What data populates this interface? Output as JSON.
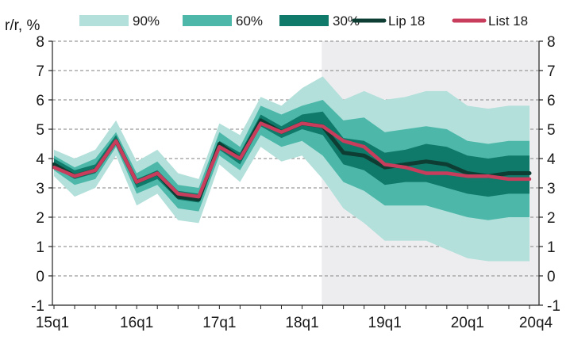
{
  "chart_data": {
    "type": "area",
    "title": "",
    "ylabel": "r/r, %",
    "xlabel": "",
    "ylim": [
      -1,
      8
    ],
    "yticks": [
      -1,
      0,
      1,
      2,
      3,
      4,
      5,
      6,
      7,
      8
    ],
    "x_tick_labels": [
      {
        "i": 0,
        "label": "15q1"
      },
      {
        "i": 4,
        "label": "16q1"
      },
      {
        "i": 8,
        "label": "17q1"
      },
      {
        "i": 12,
        "label": "18q1"
      },
      {
        "i": 16,
        "label": "19q1"
      },
      {
        "i": 20,
        "label": "20q1"
      },
      {
        "i": 23,
        "label": "20q4"
      }
    ],
    "forecast_start_index": 13,
    "grid": "horizontal dashed",
    "legend_position": "top",
    "legend": [
      {
        "key": "band90",
        "label": "90%"
      },
      {
        "key": "band60",
        "label": "60%"
      },
      {
        "key": "band30",
        "label": "30%"
      },
      {
        "key": "lip",
        "label": "Lip 18"
      },
      {
        "key": "list",
        "label": "List 18"
      }
    ],
    "colors": {
      "band90": "#b3e0da",
      "band60": "#4db8aa",
      "band30": "#0f7a6a",
      "lip": "#0d3d33",
      "list": "#c83c5c",
      "forecast_bg": "#ededf0",
      "grid": "#9a9a9a"
    },
    "quarters": [
      "15q1",
      "15q2",
      "15q3",
      "15q4",
      "16q1",
      "16q2",
      "16q3",
      "16q4",
      "17q1",
      "17q2",
      "17q3",
      "17q4",
      "18q1",
      "18q2",
      "18q3",
      "18q4",
      "19q1",
      "19q2",
      "19q3",
      "19q4",
      "20q1",
      "20q2",
      "20q3",
      "20q4"
    ],
    "bands": {
      "p90": {
        "low": [
          3.4,
          2.7,
          3.0,
          4.1,
          2.4,
          2.8,
          1.9,
          1.8,
          3.8,
          3.2,
          4.4,
          3.9,
          4.1,
          3.3,
          2.3,
          1.8,
          1.2,
          1.2,
          1.2,
          0.9,
          0.6,
          0.5,
          0.5,
          0.5
        ],
        "high": [
          4.3,
          4.0,
          4.3,
          5.3,
          3.9,
          4.3,
          3.5,
          3.3,
          5.2,
          4.8,
          6.1,
          5.8,
          6.4,
          6.8,
          6.0,
          6.3,
          6.0,
          6.1,
          6.3,
          6.3,
          5.8,
          5.7,
          5.8,
          5.8
        ]
      },
      "p60": {
        "low": [
          3.6,
          3.1,
          3.3,
          4.4,
          2.8,
          3.1,
          2.3,
          2.2,
          4.1,
          3.6,
          4.8,
          4.4,
          4.6,
          4.1,
          3.2,
          2.9,
          2.4,
          2.4,
          2.4,
          2.2,
          2.0,
          1.9,
          2.0,
          2.0
        ],
        "high": [
          4.1,
          3.7,
          4.0,
          4.9,
          3.5,
          3.9,
          3.1,
          3.0,
          4.9,
          4.4,
          5.8,
          5.5,
          5.8,
          6.0,
          5.3,
          5.4,
          4.9,
          5.0,
          5.1,
          5.0,
          4.6,
          4.5,
          4.6,
          4.6
        ]
      },
      "p30": {
        "low": [
          3.7,
          3.3,
          3.5,
          4.6,
          3.0,
          3.3,
          2.6,
          2.5,
          4.3,
          3.8,
          5.1,
          4.7,
          5.0,
          4.8,
          3.8,
          3.6,
          3.1,
          3.2,
          3.2,
          3.0,
          2.8,
          2.7,
          2.8,
          2.8
        ],
        "high": [
          4.0,
          3.6,
          3.8,
          4.8,
          3.3,
          3.6,
          2.9,
          2.8,
          4.6,
          4.2,
          5.5,
          5.1,
          5.5,
          5.6,
          4.7,
          4.6,
          4.2,
          4.3,
          4.5,
          4.4,
          4.1,
          4.0,
          4.1,
          4.1
        ]
      }
    },
    "series": [
      {
        "key": "lip",
        "name": "Lip 18",
        "values": [
          3.8,
          3.4,
          3.6,
          4.6,
          3.2,
          3.5,
          2.7,
          2.6,
          4.5,
          4.0,
          5.3,
          4.9,
          5.2,
          5.1,
          4.2,
          4.1,
          3.7,
          3.8,
          3.9,
          3.8,
          3.5,
          3.4,
          3.5,
          3.5
        ]
      },
      {
        "key": "list",
        "name": "List 18",
        "values": [
          3.7,
          3.4,
          3.6,
          4.6,
          3.2,
          3.5,
          2.8,
          2.7,
          4.4,
          4.0,
          5.2,
          4.9,
          5.2,
          5.1,
          4.6,
          4.4,
          3.8,
          3.7,
          3.5,
          3.5,
          3.4,
          3.4,
          3.3,
          3.3
        ]
      }
    ]
  }
}
